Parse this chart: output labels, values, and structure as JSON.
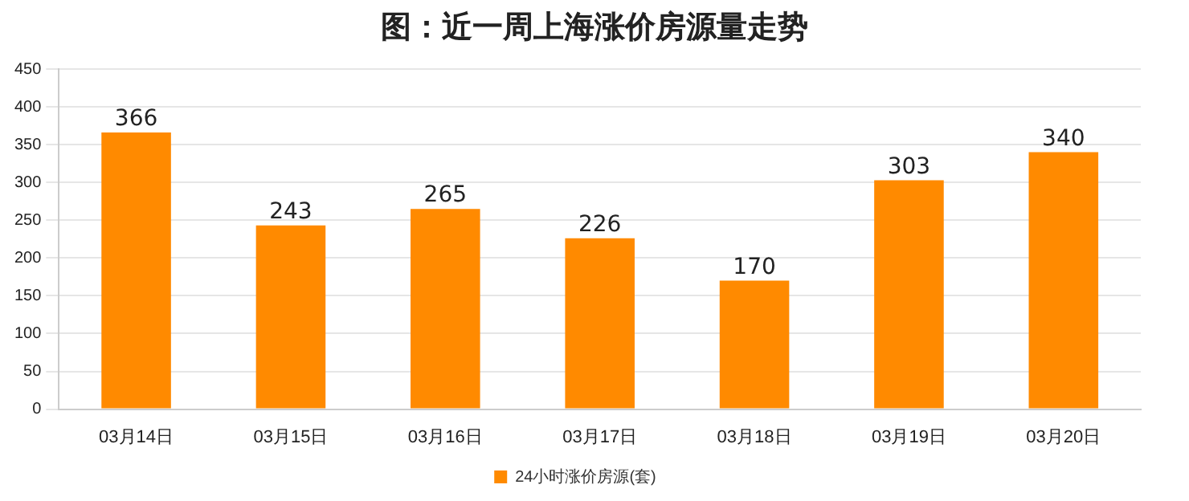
{
  "chart_data": {
    "type": "bar",
    "title": "图：近一周上海涨价房源量走势",
    "categories": [
      "03月14日",
      "03月15日",
      "03月16日",
      "03月17日",
      "03月18日",
      "03月19日",
      "03月20日"
    ],
    "series": [
      {
        "name": "24小时涨价房源(套)",
        "color": "#ff8a00",
        "values": [
          366,
          243,
          265,
          226,
          170,
          303,
          340
        ]
      }
    ],
    "ylim": [
      0,
      450
    ],
    "yticks": [
      0,
      50,
      100,
      150,
      200,
      250,
      300,
      350,
      400,
      450
    ],
    "grid": "y",
    "legend": "bottom",
    "data_labels": true
  }
}
